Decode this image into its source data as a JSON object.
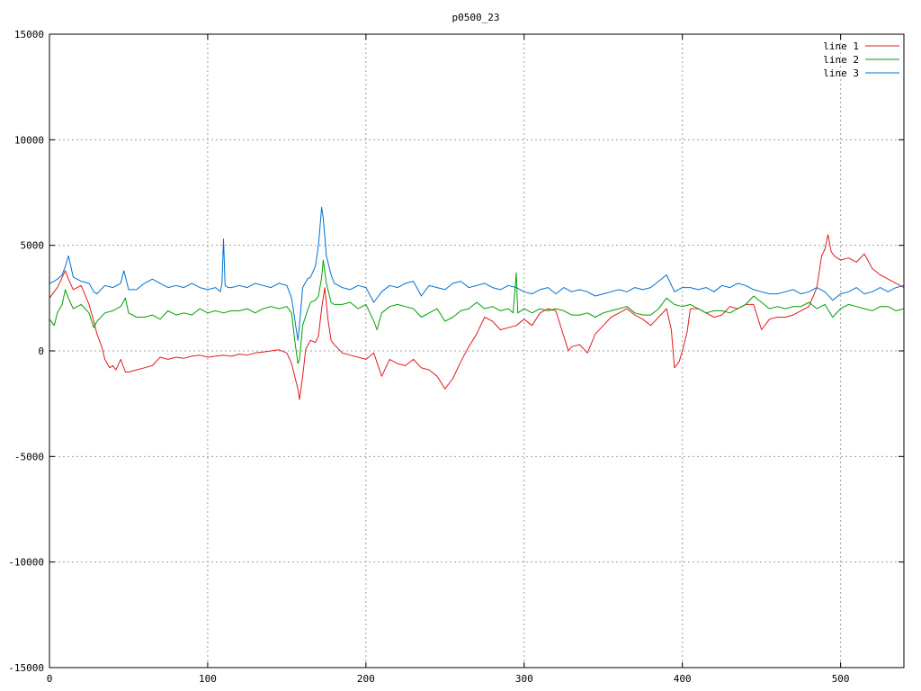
{
  "chart_data": {
    "type": "line",
    "title": "p0500_23",
    "xlabel": "",
    "ylabel": "",
    "xlim": [
      0,
      540
    ],
    "ylim": [
      -15000,
      15000
    ],
    "x_ticks": [
      0,
      100,
      200,
      300,
      400,
      500
    ],
    "y_ticks": [
      -15000,
      -10000,
      -5000,
      0,
      5000,
      10000,
      15000
    ],
    "grid": true,
    "legend_position": "top-right",
    "series": [
      {
        "name": "line 1",
        "color": "#e41a1c",
        "x": [
          0,
          5,
          10,
          12,
          15,
          20,
          25,
          28,
          30,
          33,
          35,
          38,
          40,
          42,
          45,
          48,
          50,
          55,
          60,
          65,
          70,
          75,
          80,
          85,
          90,
          95,
          100,
          105,
          110,
          115,
          120,
          125,
          130,
          135,
          140,
          145,
          150,
          153,
          155,
          157,
          158,
          160,
          162,
          165,
          168,
          170,
          172,
          174,
          176,
          178,
          180,
          185,
          190,
          195,
          200,
          205,
          210,
          215,
          220,
          225,
          230,
          235,
          240,
          245,
          250,
          255,
          260,
          265,
          270,
          275,
          280,
          285,
          290,
          295,
          300,
          305,
          310,
          315,
          320,
          325,
          328,
          330,
          335,
          340,
          345,
          350,
          355,
          360,
          365,
          370,
          375,
          380,
          385,
          390,
          393,
          395,
          398,
          400,
          403,
          405,
          410,
          415,
          420,
          425,
          430,
          435,
          440,
          445,
          450,
          455,
          460,
          465,
          470,
          475,
          480,
          485,
          488,
          490,
          492,
          494,
          496,
          500,
          505,
          510,
          515,
          520,
          525,
          530,
          535,
          540
        ],
        "y": [
          2500,
          3000,
          3800,
          3400,
          2900,
          3100,
          2200,
          1400,
          800,
          200,
          -400,
          -800,
          -700,
          -900,
          -400,
          -1000,
          -1000,
          -900,
          -800,
          -700,
          -300,
          -400,
          -300,
          -350,
          -250,
          -200,
          -300,
          -250,
          -200,
          -250,
          -150,
          -200,
          -100,
          -50,
          0,
          50,
          -100,
          -600,
          -1200,
          -1800,
          -2300,
          -1200,
          100,
          500,
          400,
          700,
          2000,
          3000,
          1500,
          500,
          300,
          -100,
          -200,
          -300,
          -400,
          -100,
          -1200,
          -400,
          -600,
          -700,
          -400,
          -800,
          -900,
          -1200,
          -1800,
          -1300,
          -500,
          200,
          800,
          1600,
          1400,
          1000,
          1100,
          1200,
          1500,
          1200,
          1800,
          2000,
          1900,
          700,
          0,
          200,
          300,
          -100,
          800,
          1200,
          1600,
          1800,
          2000,
          1700,
          1500,
          1200,
          1600,
          2000,
          1000,
          -800,
          -500,
          0,
          900,
          2000,
          2000,
          1800,
          1600,
          1700,
          2100,
          2000,
          2200,
          2200,
          1000,
          1500,
          1600,
          1600,
          1700,
          1900,
          2100,
          3000,
          4500,
          4800,
          5500,
          4700,
          4500,
          4300,
          4400,
          4200,
          4600,
          3900,
          3600,
          3400,
          3200,
          3000
        ]
      },
      {
        "name": "line 2",
        "color": "#00a000",
        "x": [
          0,
          3,
          5,
          8,
          10,
          12,
          15,
          20,
          25,
          28,
          30,
          35,
          40,
          45,
          48,
          50,
          55,
          60,
          65,
          70,
          75,
          80,
          85,
          90,
          95,
          100,
          105,
          110,
          115,
          120,
          125,
          130,
          135,
          140,
          145,
          150,
          153,
          155,
          157,
          158,
          160,
          163,
          165,
          168,
          170,
          172,
          173,
          175,
          178,
          180,
          185,
          190,
          195,
          200,
          205,
          207,
          210,
          215,
          220,
          225,
          230,
          235,
          240,
          245,
          250,
          255,
          260,
          265,
          270,
          275,
          280,
          285,
          290,
          293,
          295,
          296,
          298,
          300,
          305,
          310,
          315,
          320,
          325,
          330,
          335,
          340,
          345,
          350,
          355,
          360,
          365,
          370,
          375,
          380,
          385,
          390,
          395,
          400,
          405,
          410,
          415,
          420,
          425,
          430,
          435,
          440,
          445,
          450,
          455,
          460,
          465,
          470,
          475,
          480,
          485,
          490,
          495,
          500,
          505,
          510,
          515,
          520,
          525,
          530,
          535,
          540
        ],
        "y": [
          1500,
          1200,
          1800,
          2200,
          2900,
          2500,
          2000,
          2200,
          1800,
          1100,
          1400,
          1800,
          1900,
          2100,
          2500,
          1800,
          1600,
          1600,
          1700,
          1500,
          1900,
          1700,
          1800,
          1700,
          2000,
          1800,
          1900,
          1800,
          1900,
          1900,
          2000,
          1800,
          2000,
          2100,
          2000,
          2100,
          1800,
          500,
          -600,
          -400,
          1200,
          1900,
          2300,
          2400,
          2600,
          3500,
          4300,
          3200,
          2300,
          2200,
          2200,
          2300,
          2000,
          2200,
          1400,
          1000,
          1800,
          2100,
          2200,
          2100,
          2000,
          1600,
          1800,
          2000,
          1400,
          1600,
          1900,
          2000,
          2300,
          2000,
          2100,
          1900,
          2000,
          1800,
          3700,
          1800,
          1900,
          2000,
          1800,
          2000,
          1900,
          2000,
          1900,
          1700,
          1700,
          1800,
          1600,
          1800,
          1900,
          2000,
          2100,
          1800,
          1700,
          1700,
          2000,
          2500,
          2200,
          2100,
          2200,
          2000,
          1800,
          1900,
          1900,
          1800,
          2000,
          2200,
          2600,
          2300,
          2000,
          2100,
          2000,
          2100,
          2100,
          2300,
          2000,
          2200,
          1600,
          2000,
          2200,
          2100,
          2000,
          1900,
          2100,
          2100,
          1900,
          2000
        ]
      },
      {
        "name": "line 3",
        "color": "#0070d0",
        "x": [
          0,
          3,
          5,
          8,
          10,
          12,
          15,
          20,
          25,
          28,
          30,
          35,
          40,
          45,
          47,
          50,
          55,
          60,
          65,
          70,
          75,
          80,
          85,
          90,
          95,
          100,
          105,
          108,
          109,
          110,
          111,
          113,
          115,
          120,
          125,
          130,
          135,
          140,
          145,
          150,
          153,
          155,
          157,
          158,
          160,
          163,
          165,
          168,
          170,
          172,
          173,
          175,
          178,
          180,
          185,
          190,
          195,
          200,
          205,
          210,
          215,
          220,
          225,
          230,
          235,
          240,
          245,
          250,
          255,
          260,
          265,
          270,
          275,
          280,
          285,
          290,
          295,
          300,
          305,
          310,
          315,
          320,
          325,
          330,
          335,
          340,
          345,
          350,
          355,
          360,
          365,
          370,
          375,
          380,
          385,
          390,
          395,
          400,
          405,
          410,
          415,
          420,
          425,
          430,
          435,
          440,
          445,
          450,
          455,
          460,
          465,
          470,
          475,
          480,
          485,
          490,
          495,
          500,
          505,
          510,
          515,
          520,
          525,
          530,
          535,
          540
        ],
        "y": [
          3200,
          3300,
          3400,
          3600,
          4000,
          4500,
          3500,
          3300,
          3200,
          2800,
          2700,
          3100,
          3000,
          3200,
          3800,
          2900,
          2900,
          3200,
          3400,
          3200,
          3000,
          3100,
          3000,
          3200,
          3000,
          2900,
          3000,
          2800,
          3200,
          5300,
          3100,
          3000,
          3000,
          3100,
          3000,
          3200,
          3100,
          3000,
          3200,
          3100,
          2500,
          1500,
          500,
          1200,
          3000,
          3400,
          3500,
          4000,
          5000,
          6800,
          6300,
          4500,
          3600,
          3200,
          3000,
          2900,
          3100,
          3000,
          2300,
          2800,
          3100,
          3000,
          3200,
          3300,
          2600,
          3100,
          3000,
          2900,
          3200,
          3300,
          3000,
          3100,
          3200,
          3000,
          2900,
          3100,
          3000,
          2800,
          2700,
          2900,
          3000,
          2700,
          3000,
          2800,
          2900,
          2800,
          2600,
          2700,
          2800,
          2900,
          2800,
          3000,
          2900,
          3000,
          3300,
          3600,
          2800,
          3000,
          3000,
          2900,
          3000,
          2800,
          3100,
          3000,
          3200,
          3100,
          2900,
          2800,
          2700,
          2700,
          2800,
          2900,
          2700,
          2800,
          3000,
          2800,
          2400,
          2700,
          2800,
          3000,
          2700,
          2800,
          3000,
          2800,
          3000,
          3100
        ]
      }
    ]
  }
}
